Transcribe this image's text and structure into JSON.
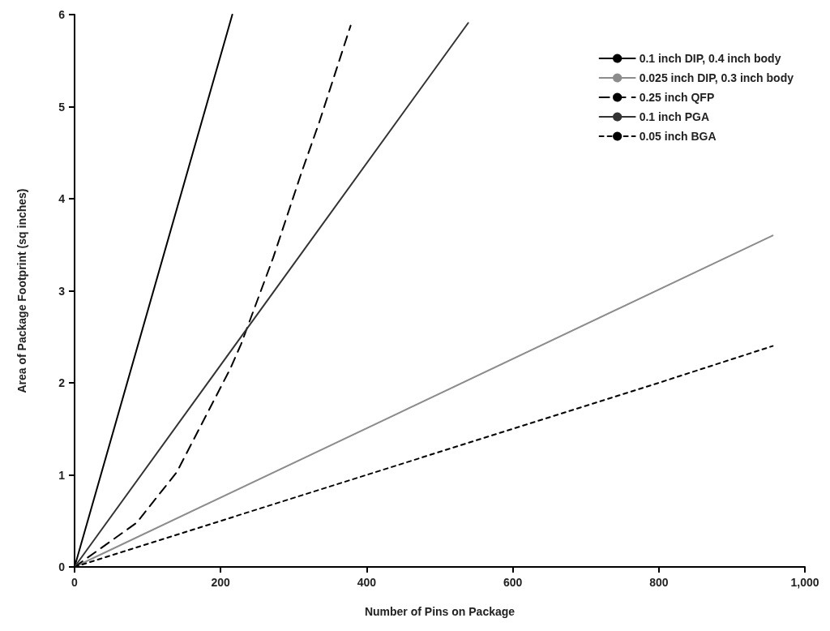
{
  "chart_data": {
    "type": "line",
    "xlabel": "Number of Pins on Package",
    "ylabel": "Area of Package Footprint (sq inches)",
    "xlim": [
      0,
      1000
    ],
    "xticks": [
      0,
      200,
      400,
      600,
      800,
      {
        "value": 1000,
        "label": "1,000"
      }
    ],
    "ylim": [
      0,
      6
    ],
    "yticks": [
      0,
      1,
      2,
      3,
      4,
      5,
      6
    ],
    "grid": false,
    "legend": "top right",
    "marker": "none",
    "series": [
      {
        "name": "0.1 inch DIP, 0.4 inch body",
        "color": "#000000",
        "line_style": "solid",
        "x": [
          0,
          216
        ],
        "values": [
          0,
          6
        ]
      },
      {
        "name": "0.025 inch DIP, 0.3 inch body",
        "color": "#8c8c8c",
        "line_style": "solid",
        "x": [
          0,
          956
        ],
        "values": [
          0,
          3.6
        ]
      },
      {
        "name": "0.25 inch QFP",
        "color": "#000000",
        "line_style": "dashed",
        "x": [
          0,
          85,
          140,
          213,
          228,
          272,
          311,
          335,
          378
        ],
        "values": [
          0,
          0.48,
          1.03,
          2.15,
          2.42,
          3.36,
          4.29,
          4.83,
          5.88
        ]
      },
      {
        "name": "0.1 inch PGA",
        "color": "#333333",
        "line_style": "solid",
        "x": [
          0,
          539
        ],
        "values": [
          0,
          5.91
        ]
      },
      {
        "name": "0.05 inch BGA",
        "color": "#000000",
        "line_style": "dotted",
        "x": [
          0,
          200,
          400,
          600,
          800,
          956
        ],
        "values": [
          0,
          0.5,
          1,
          1.5,
          2,
          2.4
        ]
      }
    ]
  }
}
